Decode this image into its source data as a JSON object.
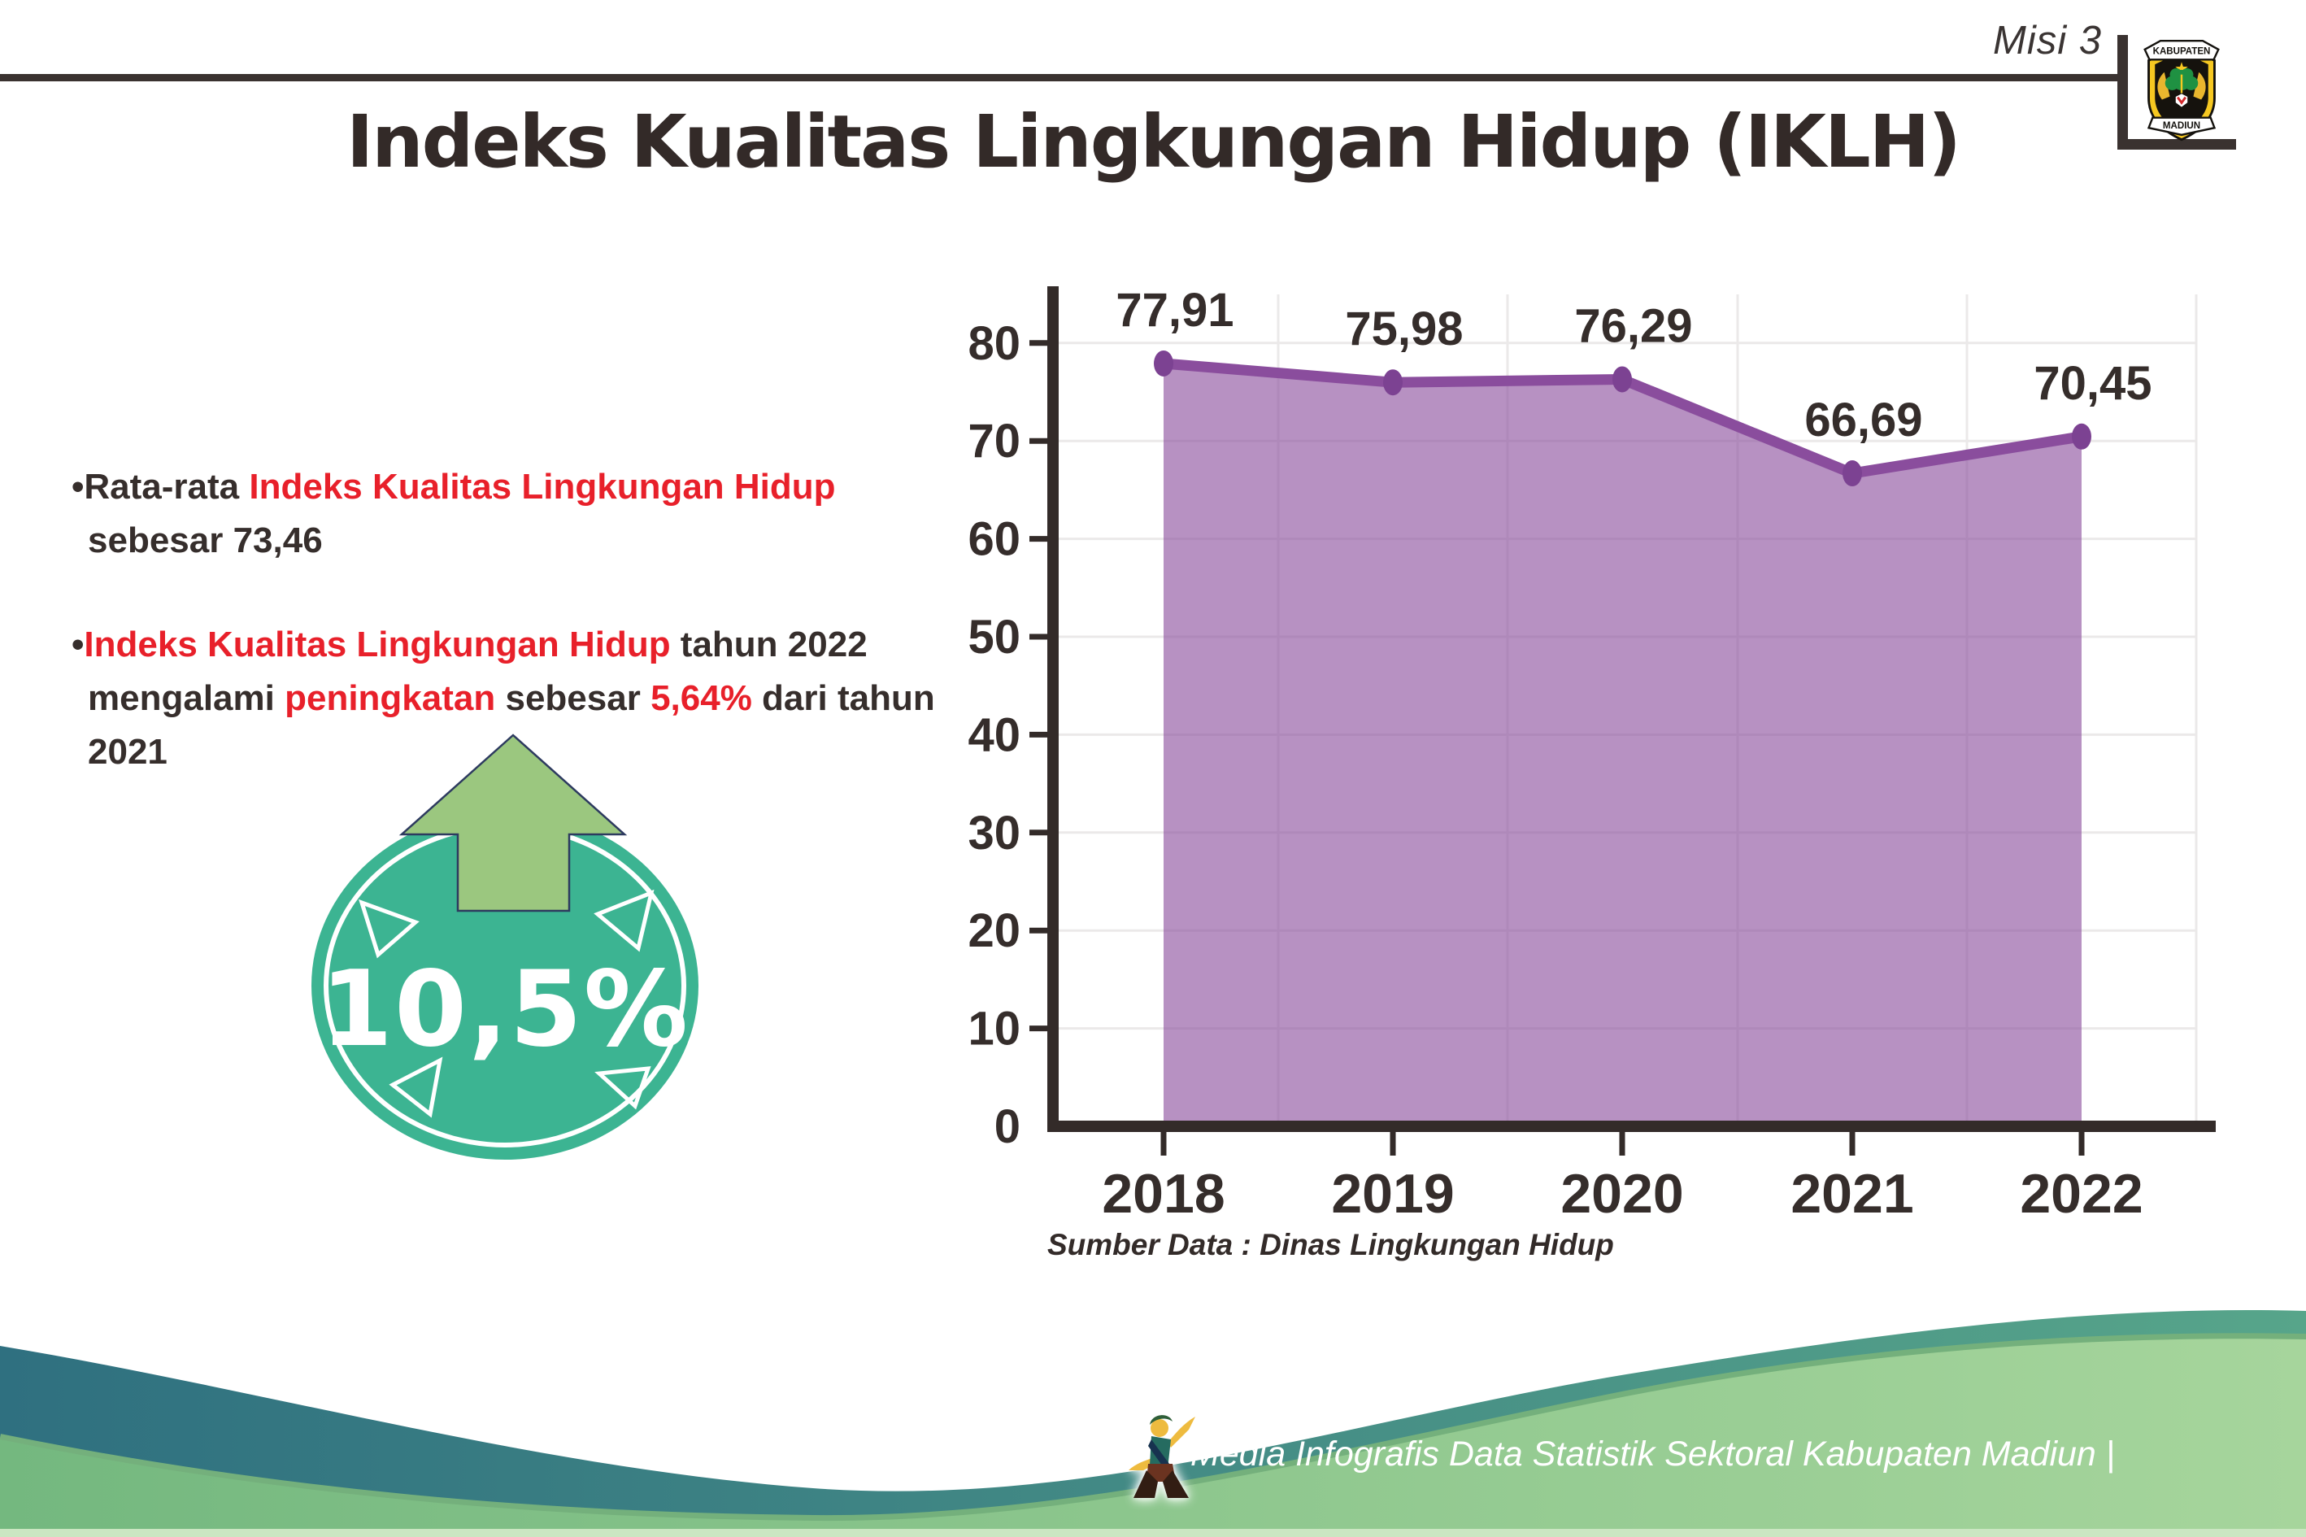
{
  "header": {
    "misi_label": "Misi 3",
    "title": "Indeks Kualitas Lingkungan Hidup (IKLH)",
    "logo": {
      "top_text": "KABUPATEN",
      "bottom_text": "MADIUN"
    }
  },
  "bullets": [
    {
      "segments": [
        {
          "text": "•Rata-rata ",
          "tone": "dark"
        },
        {
          "text": "Indeks Kualitas Lingkungan Hidup",
          "tone": "red"
        },
        {
          "text": " sebesar 73,46",
          "tone": "dark"
        }
      ]
    },
    {
      "segments": [
        {
          "text": "•",
          "tone": "dark"
        },
        {
          "text": "Indeks Kualitas Lingkungan Hidup",
          "tone": "red"
        },
        {
          "text": " tahun 2022 mengalami ",
          "tone": "dark"
        },
        {
          "text": "peningkatan",
          "tone": "red"
        },
        {
          "text": " sebesar ",
          "tone": "dark"
        },
        {
          "text": "5,64%",
          "tone": "red"
        },
        {
          "text": " dari tahun 2021",
          "tone": "dark"
        }
      ]
    }
  ],
  "badge": {
    "value": "10,5%",
    "icon": "up-arrow"
  },
  "chart_data": {
    "type": "area",
    "categories": [
      "2018",
      "2019",
      "2020",
      "2021",
      "2022"
    ],
    "values": [
      77.91,
      75.98,
      76.29,
      66.69,
      70.45
    ],
    "point_labels": [
      "77,91",
      "75,98",
      "76,29",
      "66,69",
      "70,45"
    ],
    "title": "",
    "xlabel": "",
    "ylabel": "",
    "ylim": [
      0,
      80
    ],
    "ytick_step": 10,
    "yticks": [
      "0",
      "10",
      "20",
      "30",
      "40",
      "50",
      "60",
      "70",
      "80"
    ],
    "grid": true,
    "legend": "none",
    "source_note": "Sumber Data : Dinas Lingkungan Hidup"
  },
  "footer": {
    "credit": "Media Infografis Data Statistik Sektoral Kabupaten Madiun |"
  },
  "colors": {
    "red_accent": "#e8202a",
    "dark_text": "#362e2c",
    "axis_dark": "#332b29",
    "grid_gray": "#ebe9e9",
    "chart_line_purple": "#8a4d9d",
    "chart_dot_purple": "#7c4292",
    "badge_teal": "#3cb492",
    "arrow_green": "#9bc77f",
    "arrow_outline_navy": "#2d3a5f",
    "wave_teal_start": "#2f7080",
    "wave_teal_end": "#57a58a",
    "wave_green_start": "#74b87f",
    "wave_green_end": "#a6d59c",
    "wave_green_edge": "#74b07c",
    "bottom_strip": "#cbe6c2"
  }
}
